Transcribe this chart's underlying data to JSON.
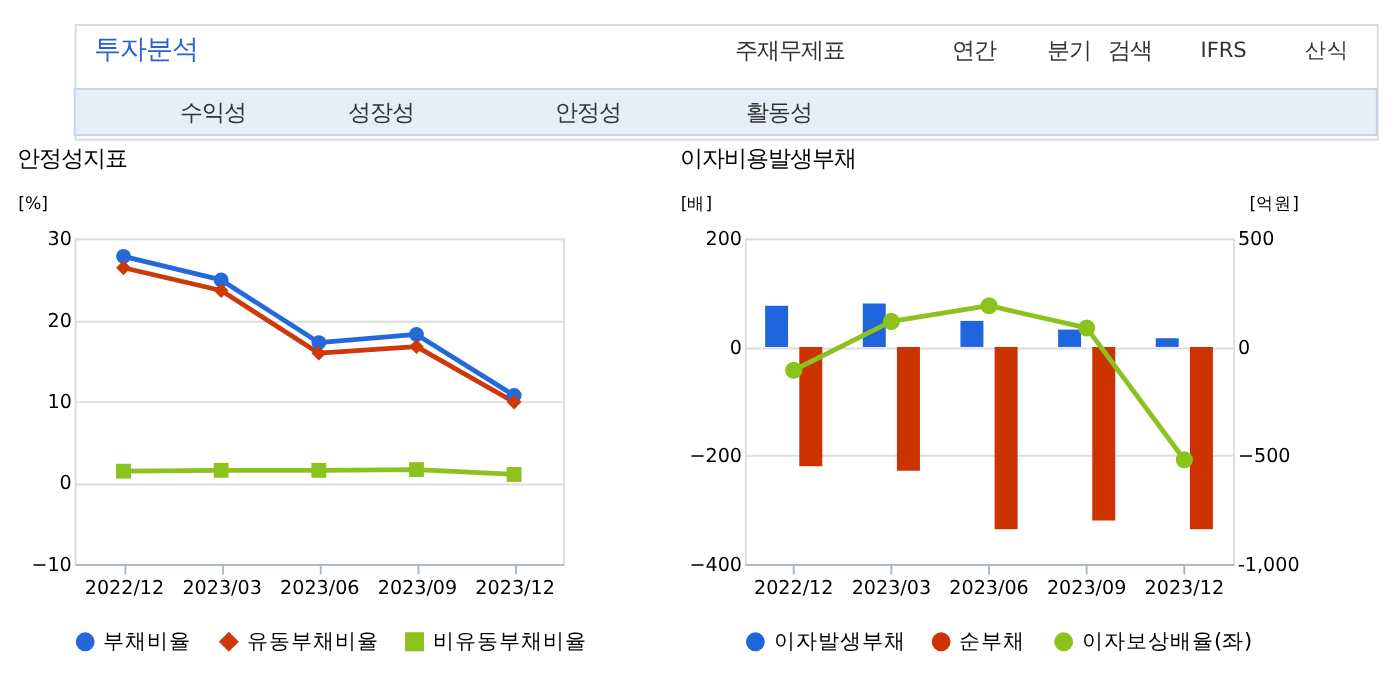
{
  "chart_data": [
    {
      "type": "other",
      "annotations": [
        "투자분석",
        "주재무제표",
        "연간",
        "분기",
        "검색",
        "IFRS",
        "산식",
        "수익성",
        "성장성",
        "안정성",
        "활동성"
      ]
    },
    {
      "type": "line",
      "title": "안정성지표",
      "ylabel": "[%]",
      "categories": [
        "2022/12",
        "2023/03",
        "2023/06",
        "2023/09",
        "2023/12"
      ],
      "ylim": [
        -10,
        30
      ],
      "yticks": [
        -10,
        0,
        10,
        20,
        30
      ],
      "grid": "y",
      "legend": "bottom",
      "line_style": "solid",
      "series": [
        {
          "name": "부채비율",
          "color": "#2468dc",
          "marker": "circle",
          "values": [
            27.8,
            24.9,
            17.2,
            18.2,
            10.7
          ]
        },
        {
          "name": "유동부채비율",
          "color": "#cc3a0c",
          "marker": "diamond",
          "values": [
            26.4,
            23.6,
            15.9,
            16.7,
            9.9
          ]
        },
        {
          "name": "비유동부채비율",
          "color": "#8cc21e",
          "marker": "square",
          "values": [
            1.4,
            1.5,
            1.5,
            1.6,
            1.0
          ]
        }
      ]
    },
    {
      "type": "bar",
      "title": "이자비용발생부채",
      "ylabel": "[배]",
      "y2label": "[억원]",
      "categories": [
        "2022/12",
        "2023/03",
        "2023/06",
        "2023/09",
        "2023/12"
      ],
      "ylim": [
        -400,
        200
      ],
      "yticks": [
        -400,
        -200,
        0,
        200
      ],
      "y2lim": [
        -1000,
        500
      ],
      "y2ticks": [
        {
          "value": -1000,
          "label": "-1,000"
        },
        -500,
        0,
        500
      ],
      "grid": "y",
      "legend": "bottom",
      "series": [
        {
          "name": "이자발생부채",
          "color": "#1f66dc",
          "axis": "y2",
          "values": [
            190,
            200,
            120,
            80,
            40
          ]
        },
        {
          "name": "순부채",
          "color": "#cc3300",
          "axis": "y2",
          "values": [
            -550,
            -570,
            -840,
            -800,
            -840
          ]
        },
        {
          "name": "이자보상배율(좌)",
          "type": "line",
          "color": "#8cc21e",
          "marker": "circle",
          "line_style": "solid",
          "values": [
            -43,
            47,
            76,
            35,
            -208
          ]
        }
      ]
    }
  ]
}
